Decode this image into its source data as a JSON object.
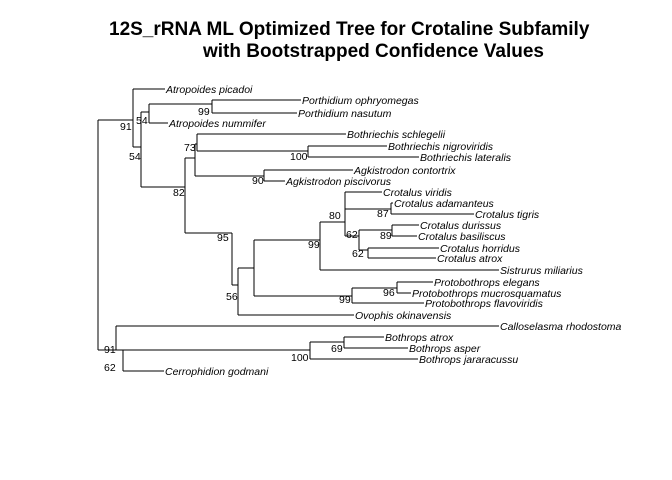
{
  "title": {
    "line1": "12S_rRNA ML Optimized Tree for Crotaline Subfamily",
    "line2": "with Bootstrapped Confidence Values"
  },
  "taxa": {
    "atropoides_picadoi": "Atropoides picadoi",
    "porthidium_ophryomegas": "Porthidium ophryomegas",
    "porthidium_nasutum": "Porthidium nasutum",
    "atropoides_nummifer": "Atropoides nummifer",
    "bothriechis_schlegelii": "Bothriechis schlegelii",
    "bothriechis_nigroviridis": "Bothriechis nigroviridis",
    "bothriechis_lateralis": "Bothriechis lateralis",
    "agkistrodon_contortrix": "Agkistrodon contortrix",
    "agkistrodon_piscivorus": "Agkistrodon piscivorus",
    "crotalus_viridis": "Crotalus viridis",
    "crotalus_adamanteus": "Crotalus adamanteus",
    "crotalus_tigris": "Crotalus tigris",
    "crotalus_durissus": "Crotalus durissus",
    "crotalus_basiliscus": "Crotalus basiliscus",
    "crotalus_horridus": "Crotalus horridus",
    "crotalus_atrox": "Crotalus atrox",
    "sistrurus_miliarius": "Sistrurus miliarius",
    "protobothrops_elegans": "Protobothrops elegans",
    "protobothrops_mucrosquamatus": "Protobothrops mucrosquamatus",
    "protobothrops_flavoviridis": "Protobothrops flavoviridis",
    "ovophis_okinavensis": "Ovophis okinavensis",
    "calloselasma_rhodostoma": "Calloselasma rhodostoma",
    "bothrops_atrox": "Bothrops atrox",
    "bothrops_asper": "Bothrops asper",
    "bothrops_jararacussu": "Bothrops jararacussu",
    "cerrophidion_godmani": "Cerrophidion godmani"
  },
  "support": {
    "porthidium": "99",
    "atropoides_porthidium": "54",
    "porthidium_nummifer": "54",
    "root_upper": "91",
    "bothriechis_pair": "100",
    "bothriechis": "73",
    "agkistrodon": "90",
    "bothriechis_agkistrodon": "82",
    "crotalus_adam_tigris": "87",
    "crotalus_dur_bas": "89",
    "crotalus_hor_atrox": "62",
    "crotalus_inner": "62",
    "crotalus": "80",
    "crotalus_sistrurus": "99",
    "protobothrops_pair": "96",
    "protobothrops": "99",
    "core_ovophis": "56",
    "core": "95",
    "bothrops_atrox_asper": "69",
    "bothrops": "100",
    "lower_clade": "91",
    "cerrophidion_split": "62"
  }
}
